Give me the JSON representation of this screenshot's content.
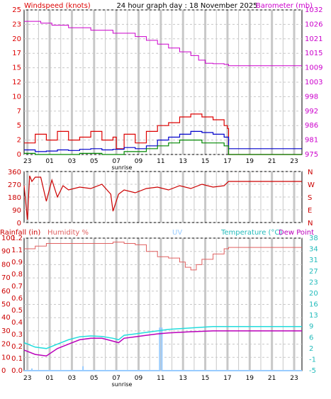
{
  "colors": {
    "windspeed": "#dd0000",
    "wind_avg": "#0000cc",
    "wind_low": "#008800",
    "barometer": "#cc00cc",
    "direction": "#cc0000",
    "rain_axis": "#cc0000",
    "humidity": "#e06060",
    "uv": "#99ccff",
    "temperature": "#22dddd",
    "dewpoint": "#bb00bb",
    "grid": "#c8c8c8",
    "frame": "#000000"
  },
  "chart_data": [
    {
      "type": "line",
      "title": "24 hour graph day : 18 November 2025",
      "y_left_label": "Windspeed (knots)",
      "y_right_label": "Barometer (mb)",
      "x_ticks": [
        "23",
        "01",
        "03",
        "05",
        "07",
        "09",
        "11",
        "13",
        "15",
        "17",
        "19",
        "21",
        "23"
      ],
      "x_annotation": "sunrise",
      "y_left_ticks": [
        "0",
        "2",
        "5",
        "7",
        "10",
        "12",
        "15",
        "17",
        "20",
        "23",
        "25"
      ],
      "y_left_range": [
        0,
        25
      ],
      "y_right_ticks": [
        "975",
        "981",
        "986",
        "992",
        "998",
        "1003",
        "1009",
        "1015",
        "1021",
        "1026",
        "1032"
      ],
      "y_right_range": [
        975,
        1032
      ],
      "barometer": {
        "x": [
          -1.0,
          0.5,
          1.5,
          3.0,
          5.0,
          7.0,
          9.0,
          10.0,
          11.0,
          12.0,
          13.0,
          14.0,
          14.7,
          15.3,
          16.0,
          17.0,
          17.4,
          24.0
        ],
        "y": [
          1027.5,
          1026.8,
          1026.0,
          1025.0,
          1024.0,
          1022.8,
          1021.5,
          1020.0,
          1018.5,
          1017.0,
          1015.5,
          1014.0,
          1012.2,
          1011.0,
          1010.8,
          1010.5,
          1010.0,
          1010.0
        ]
      },
      "wind_series": [
        {
          "name": "gust",
          "color_key": "windspeed",
          "x": [
            -1.0,
            0.0,
            1.0,
            2.0,
            3.0,
            4.0,
            5.0,
            6.0,
            7.0,
            7.3,
            8.0,
            9.0,
            10.0,
            11.0,
            12.0,
            13.0,
            14.0,
            15.0,
            16.0,
            17.0,
            17.3,
            17.4,
            24.0
          ],
          "y": [
            2.0,
            3.5,
            2.5,
            4.0,
            2.5,
            3.0,
            4.0,
            2.5,
            3.0,
            1.0,
            3.5,
            2.0,
            4.0,
            5.0,
            5.5,
            6.5,
            7.0,
            6.5,
            6.0,
            5.0,
            4.5,
            0.0,
            0.0
          ]
        },
        {
          "name": "average",
          "color_key": "wind_avg",
          "x": [
            -1.0,
            0.0,
            1.0,
            2.0,
            3.0,
            4.0,
            5.0,
            6.0,
            7.0,
            8.0,
            9.0,
            10.0,
            11.0,
            12.0,
            13.0,
            14.0,
            15.0,
            16.0,
            17.0,
            17.4,
            24.0
          ],
          "y": [
            0.8,
            0.5,
            0.6,
            0.8,
            0.7,
            0.9,
            1.0,
            0.8,
            0.9,
            1.2,
            1.0,
            1.5,
            2.5,
            3.0,
            3.5,
            4.0,
            3.8,
            3.5,
            3.0,
            1.0,
            1.0
          ]
        },
        {
          "name": "low",
          "color_key": "wind_low",
          "x": [
            -1.0,
            0.0,
            2.0,
            4.0,
            6.0,
            8.0,
            9.0,
            10.0,
            11.0,
            12.0,
            13.0,
            14.0,
            15.0,
            16.0,
            17.0,
            17.4,
            24.0
          ],
          "y": [
            0.2,
            0.0,
            0.0,
            0.2,
            0.0,
            0.5,
            0.5,
            1.0,
            1.5,
            2.0,
            2.5,
            2.5,
            2.0,
            2.0,
            1.5,
            0.0,
            0.0
          ]
        }
      ]
    },
    {
      "type": "line",
      "title": "",
      "y_left_ticks": [
        "360",
        "270",
        "180",
        "90",
        "0"
      ],
      "y_left_range": [
        0,
        360
      ],
      "y_right_ticks": [
        "N",
        "W",
        "S",
        "E",
        "N"
      ],
      "x_ticks": [
        "23",
        "01",
        "03",
        "05",
        "07",
        "09",
        "11",
        "13",
        "15",
        "17",
        "19",
        "21",
        "23"
      ],
      "series": [
        {
          "name": "direction",
          "x": [
            -1.0,
            -0.7,
            -0.5,
            -0.3,
            0.0,
            0.5,
            1.0,
            1.5,
            2.0,
            2.5,
            3.0,
            4.0,
            5.0,
            6.0,
            6.8,
            7.0,
            7.5,
            8.0,
            9.0,
            10.0,
            11.0,
            12.0,
            13.0,
            14.0,
            15.0,
            16.0,
            17.0,
            17.4,
            24.0
          ],
          "y": [
            260.0,
            20.0,
            330.0,
            290.0,
            320.0,
            320.0,
            150.0,
            300.0,
            180.0,
            260.0,
            230.0,
            250.0,
            240.0,
            270.0,
            200.0,
            80.0,
            200.0,
            230.0,
            210.0,
            240.0,
            250.0,
            230.0,
            260.0,
            240.0,
            270.0,
            250.0,
            260.0,
            290.0,
            290.0
          ]
        }
      ]
    },
    {
      "type": "line",
      "y_left_label": "Rainfall (in)",
      "humidity_label": "Humidity %",
      "uv_label": "UV",
      "y_right_label": "Temperature (°C)",
      "dewpoint_label": "Dew Point",
      "rain_ticks": [
        "0.0",
        "0.1",
        "0.2",
        "0.3",
        "0.4",
        "0.5",
        "0.6",
        "0.7",
        "0.8",
        "0.9",
        "1.1",
        "1.2"
      ],
      "humidity_ticks": [
        "0",
        "10",
        "20",
        "30",
        "40",
        "50",
        "60",
        "70",
        "80",
        "90",
        "100"
      ],
      "humidity_range": [
        0,
        100
      ],
      "temp_ticks": [
        "-5",
        "-1",
        "2",
        "6",
        "9",
        "13",
        "16",
        "20",
        "23",
        "27",
        "31",
        "34",
        "38"
      ],
      "temp_range": [
        -5,
        40
      ],
      "x_ticks": [
        "23",
        "01",
        "03",
        "05",
        "07",
        "09",
        "11",
        "13",
        "15",
        "17",
        "19",
        "21",
        "23"
      ],
      "x_annotation": "sunrise",
      "humidity": {
        "x": [
          -1.0,
          0.0,
          1.0,
          5.0,
          7.0,
          8.0,
          9.0,
          10.0,
          11.0,
          12.0,
          13.0,
          13.5,
          14.0,
          14.5,
          15.0,
          16.0,
          17.0,
          17.4,
          24.0
        ],
        "y": [
          92.0,
          94.0,
          96.0,
          96.0,
          97.0,
          96.0,
          95.0,
          90.0,
          86.0,
          85.0,
          82.0,
          78.0,
          76.0,
          80.0,
          84.0,
          88.0,
          92.0,
          93.0,
          93.0
        ]
      },
      "temperature": {
        "x": [
          -1.0,
          0.0,
          1.0,
          2.0,
          3.0,
          4.0,
          5.0,
          6.0,
          7.0,
          7.5,
          8.0,
          9.0,
          10.0,
          11.0,
          12.0,
          14.0,
          16.0,
          17.4,
          24.0
        ],
        "y": [
          4.5,
          3.0,
          2.5,
          4.0,
          5.5,
          6.5,
          6.8,
          6.6,
          6.0,
          5.5,
          7.0,
          7.5,
          8.0,
          8.5,
          9.0,
          9.5,
          10.0,
          10.0,
          10.0
        ]
      },
      "dewpoint": {
        "x": [
          -1.0,
          0.0,
          1.0,
          2.0,
          3.0,
          4.0,
          5.0,
          6.0,
          7.0,
          7.5,
          8.0,
          9.0,
          10.0,
          11.0,
          12.0,
          14.0,
          16.0,
          17.4,
          24.0
        ],
        "y": [
          2.0,
          0.5,
          0.0,
          2.5,
          4.0,
          5.5,
          6.0,
          6.0,
          5.0,
          4.5,
          6.0,
          6.5,
          7.0,
          7.5,
          7.8,
          8.2,
          8.5,
          8.5,
          8.5
        ]
      },
      "uv": {
        "x": [
          -1.0,
          11.2,
          11.2,
          11.4,
          11.4,
          24.0
        ],
        "y": [
          0,
          0,
          3.2,
          3.2,
          0,
          0
        ]
      },
      "rain_bars": {
        "x": [
          -0.3,
          4.3
        ],
        "y": [
          0.02,
          0.04
        ]
      }
    }
  ]
}
